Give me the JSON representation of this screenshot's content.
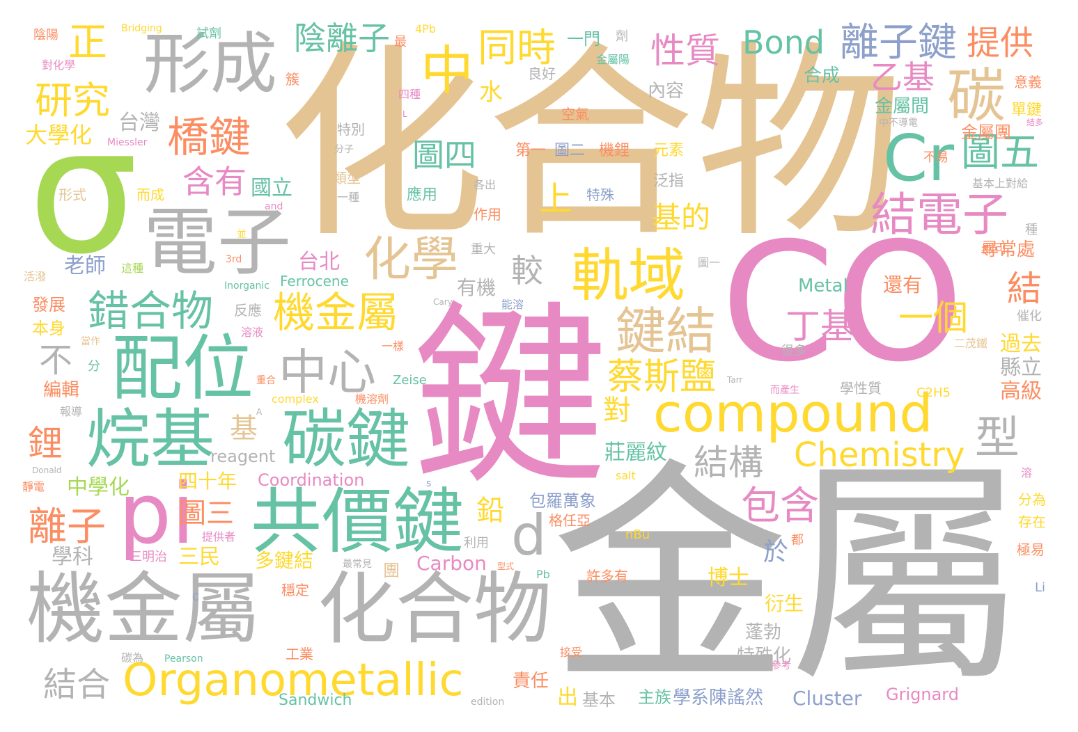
{
  "palette": {
    "gray": "#b3b3b3",
    "tan": "#e5c494",
    "pink": "#e78ac3",
    "green": "#66c2a5",
    "yellow": "#ffd92f",
    "orange": "#fc8d62",
    "lime": "#a6d854",
    "blue": "#8da0cb"
  },
  "words": {
    "huahewu": "化合物",
    "jinshu": "金屬",
    "jian": "鍵",
    "co": "CO",
    "sigma": "σ",
    "xingcheng": "形成",
    "dianzi": "電子",
    "peiwei": "配位",
    "wanji": "烷基",
    "tanjian": "碳鍵",
    "gongjiajian": "共價鍵",
    "pi": "pi",
    "jijinshu_big": "機金屬",
    "huahewu2": "化合物",
    "organometallic": "Organometallic",
    "compound": "compound",
    "chemistry": "Chemistry",
    "guiyu": "軌域",
    "jianjie": "鍵結",
    "zhongxin": "中心",
    "huaxue": "化學",
    "jijinshu_mid": "機金屬",
    "cuohewu": "錯合物",
    "qiaojian": "橋鍵",
    "hanyou": "含有",
    "yanjiu": "研究",
    "zheng": "正",
    "zhong": "中",
    "tongshi": "同時",
    "yinlizi": "陰離子",
    "bond": "Bond",
    "lizijian": "離子鍵",
    "tigong": "提供",
    "xingzhi": "性質",
    "tan": "碳",
    "cr": "Cr",
    "tuwu": "圖五",
    "jiedianzi": "結電子",
    "yiji": "乙基",
    "shang": "上",
    "tusi": "圖四",
    "dingji": "丁基",
    "yige": "一個",
    "caisiyan": "蔡斯鹽",
    "xing": "型",
    "jiegou": "結構",
    "d": "d",
    "baohan": "包含",
    "lizi": "離子",
    "li": "鋰",
    "jie": "結",
    "jiehe": "結合",
    "jide": "基的",
    "jiao": "較",
    "shui": "水",
    "guoli": "國立",
    "taiwan": "台灣",
    "daxuehua": "大學化",
    "laoshi": "老師",
    "taibei": "台北",
    "youji": "有機",
    "tusan": "圖三",
    "qian": "鉛",
    "sishinian": "四十年",
    "zhonghuaxue": "中學化",
    "zhuangliwen": "莊麗紋",
    "dui": "對",
    "ji": "基",
    "reagent": "reagent",
    "coordination": "Coordination",
    "carbon": "Carbon",
    "cluster": "Cluster",
    "grignard": "Grignard",
    "metal": "Metal",
    "ferrocene": "Ferrocene",
    "sanmin": "三民",
    "xueke": "學科",
    "duojianjie": "多鍵結",
    "yu": "於",
    "bushi": "不",
    "fazhan": "發展",
    "benshen": "本身",
    "bianji": "編輯",
    "huanyou": "還有",
    "guoqu": "過去",
    "xianli": "縣立",
    "gaoji": "高級",
    "xunchang": "尋常處",
    "bosheng": "博士",
    "yansheng": "衍生",
    "pengbo": "蓬勃",
    "teshuhua": "特殊化",
    "zhuzu": "主族",
    "xuexichen": "學系陳謠然",
    "zeren": "責任",
    "chu": "出",
    "jiben": "基本",
    "baoluowanxiang": "包羅萬象",
    "geranya": "格任亞",
    "neirong": "內容",
    "yuansu": "元素",
    "fanzhi": "泛指",
    "hecheng": "合成",
    "jinshujian": "金屬間",
    "jinshutuan": "金屬團",
    "danjian": "單鍵",
    "yiyi": "意義",
    "buyi": "不易",
    "yimen": "一門",
    "liangxing": "良好",
    "kongqi": "空氣",
    "tebie": "特別",
    "leixing": "類型",
    "yingyong": "應用",
    "zuoyong": "作用",
    "teshu": "特殊",
    "diyi": "第一",
    "tuer": "圖二",
    "jili": "機鋰",
    "xingshi": "形式",
    "ercheng": "而成",
    "yinyang": "陰陽",
    "duihuaxue": "對化學",
    "shiji": "試劑",
    "bridging": "Bridging",
    "fourpb": "4Pb",
    "zu": "簇",
    "sizhong": "四種",
    "fenzi": "分子",
    "miessler": "Miessler",
    "and": "and",
    "gechu": "各出",
    "yizhong": "一種",
    "zhongda": "重大",
    "zhezhong": "這種",
    "huopo": "活潑",
    "fanying": "反應",
    "inorganic": "Inorganic",
    "third": "3rd",
    "rongye": "溶液",
    "nengrong": "能溶",
    "cary": "Cary",
    "erlongtie": "二茂鐵",
    "cuihua": "催化",
    "henduo": "很多",
    "yiyang": "一樣",
    "zeise": "Zeise",
    "complex": "complex",
    "jirongji": "機溶劑",
    "xuexingzhi": "學性質",
    "c2h5": "C2H5",
    "ersheng": "而產生",
    "tarr": "Tarr",
    "donald": "Donald",
    "jingdian": "靜電",
    "baodao": "報導",
    "chonghe": "重合",
    "a": "A",
    "s": "s",
    "salt": "salt",
    "nbu": "nBu",
    "tigongzhe": "提供者",
    "liyong": "利用",
    "zuichangjian": "最常見",
    "tuan": "團",
    "pb": "Pb",
    "xuduoyou": "許多有",
    "wending": "穩定",
    "gongye": "工業",
    "pearson": "Pearson",
    "c": "C",
    "tanwei": "碳為",
    "sandwich": "Sandwich",
    "edition": "edition",
    "jieshou": "接受",
    "si": "四",
    "cankao": "參考",
    "li_en": "Li",
    "fenwei": "分為",
    "cunzai": "存在",
    "jiyi": "極易",
    "dou": "都",
    "jike": "即可",
    "zhong2": "種",
    "zhongbudaodian": "中不導電",
    "jieduo": "結多",
    "jibenshang": "基本上對給",
    "tuyi": "圖一",
    "zui": "最",
    "ji2": "劑",
    "jinshuyang": "金屬陽",
    "sanmingzhi": "三明治",
    "dangzuo": "當作",
    "fen": "分",
    "bing": "並",
    "l": "L",
    "rong": "溶",
    "yin": "型式",
    "zheng2": "正"
  }
}
